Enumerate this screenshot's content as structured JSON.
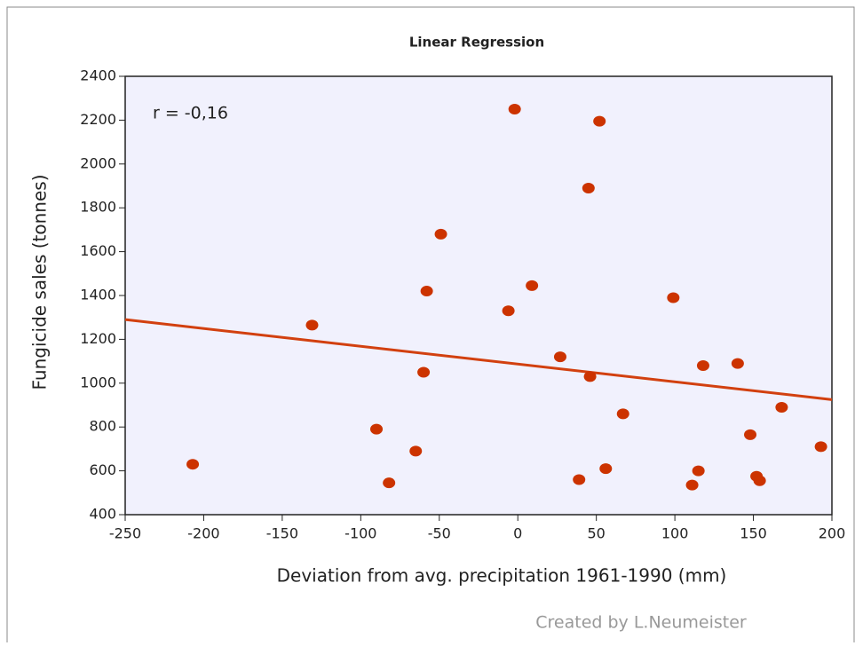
{
  "chart_data": {
    "type": "scatter",
    "title": "Linear Regression",
    "xlabel": "Deviation from avg. precipitation 1961-1990 (mm)",
    "ylabel": "Fungicide sales (tonnes)",
    "annotation": "r = -0,16",
    "credit": "Created by L.Neumeister",
    "x": [
      -207,
      -131,
      -90,
      -82,
      -65,
      -60,
      -58,
      -49,
      -6,
      -2,
      9,
      27,
      39,
      45,
      46,
      52,
      56,
      67,
      99,
      111,
      115,
      118,
      140,
      148,
      152,
      154,
      168,
      193
    ],
    "values": [
      630,
      1265,
      790,
      545,
      690,
      1050,
      1420,
      1680,
      1330,
      2250,
      1445,
      1120,
      560,
      1890,
      1030,
      2195,
      610,
      860,
      1390,
      535,
      600,
      1080,
      1090,
      765,
      575,
      555,
      890,
      710
    ],
    "color": "#cc3300",
    "regression": {
      "x": [
        -250,
        200
      ],
      "values": [
        1290,
        925
      ],
      "color": "#d2400f"
    },
    "xlim": [
      -250,
      200
    ],
    "xticks": [
      -250,
      -200,
      -150,
      -100,
      -50,
      0,
      50,
      100,
      150,
      200
    ],
    "ylim": [
      400,
      2400
    ],
    "yticks": [
      400,
      600,
      800,
      1000,
      1200,
      1400,
      1600,
      1800,
      2000,
      2200,
      2400
    ]
  }
}
